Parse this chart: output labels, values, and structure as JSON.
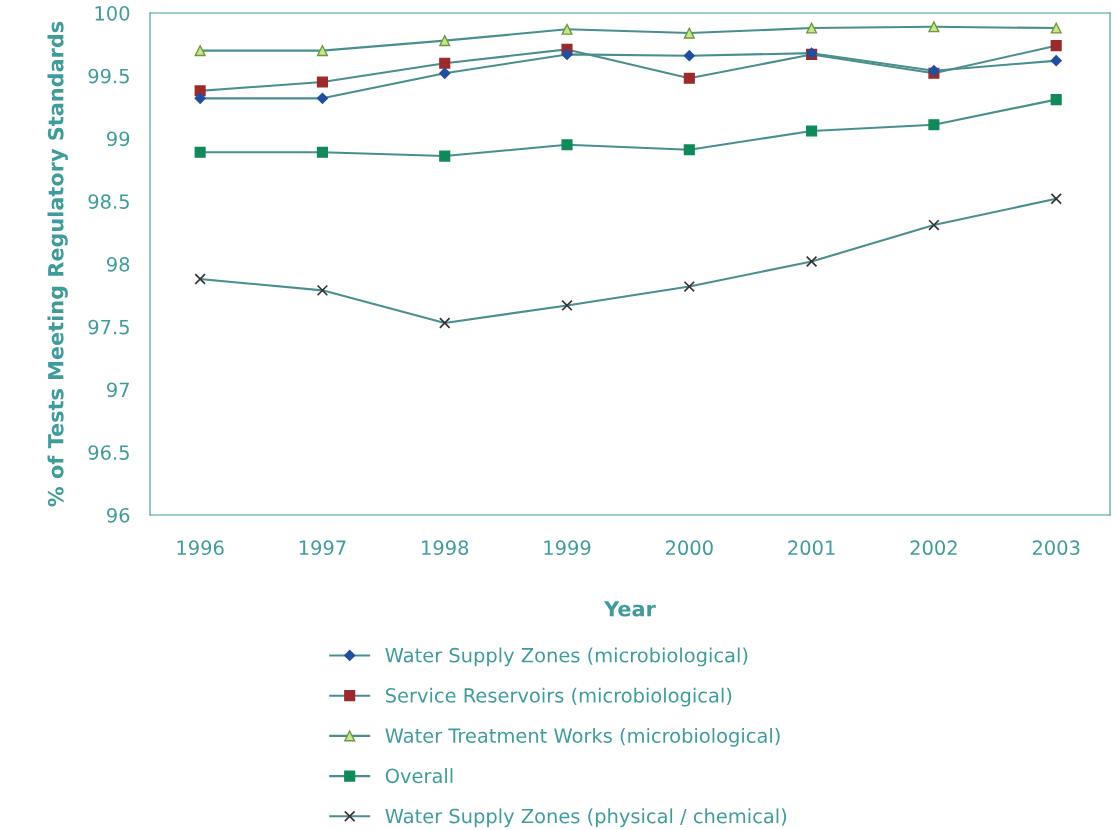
{
  "chart_data": {
    "type": "line",
    "xlabel": "Year",
    "ylabel": "% of Tests Meeting Regulatory Standards",
    "categories": [
      "1996",
      "1997",
      "1998",
      "1999",
      "2000",
      "2001",
      "2002",
      "2003"
    ],
    "ylim": [
      96,
      100
    ],
    "yticks": [
      96,
      96.5,
      97,
      97.5,
      98,
      98.5,
      99,
      99.5,
      100
    ],
    "grid": false,
    "legend": "bottom",
    "series": [
      {
        "name": "Water Supply Zones (microbiological)",
        "color": "#1f4fa0",
        "marker": "diamond",
        "values": [
          99.32,
          99.32,
          99.52,
          99.67,
          99.66,
          99.68,
          99.54,
          99.62
        ]
      },
      {
        "name": "Service Reservoirs (microbiological)",
        "color": "#9c2a2a",
        "marker": "square",
        "values": [
          99.38,
          99.45,
          99.6,
          99.71,
          99.48,
          99.67,
          99.52,
          99.74
        ]
      },
      {
        "name": "Water Treatment Works (microbiological)",
        "color": "#c8e68a",
        "marker": "triangle",
        "values": [
          99.7,
          99.7,
          99.78,
          99.87,
          99.84,
          99.88,
          99.89,
          99.88
        ]
      },
      {
        "name": "Overall",
        "color": "#0f8a5a",
        "marker": "square",
        "values": [
          98.89,
          98.89,
          98.86,
          98.95,
          98.91,
          99.06,
          99.11,
          99.31
        ]
      },
      {
        "name": "Water Supply Zones (physical / chemical)",
        "color": "#333333",
        "marker": "cross",
        "values": [
          97.88,
          97.79,
          97.53,
          97.67,
          97.82,
          98.02,
          98.31,
          98.52
        ]
      }
    ]
  }
}
